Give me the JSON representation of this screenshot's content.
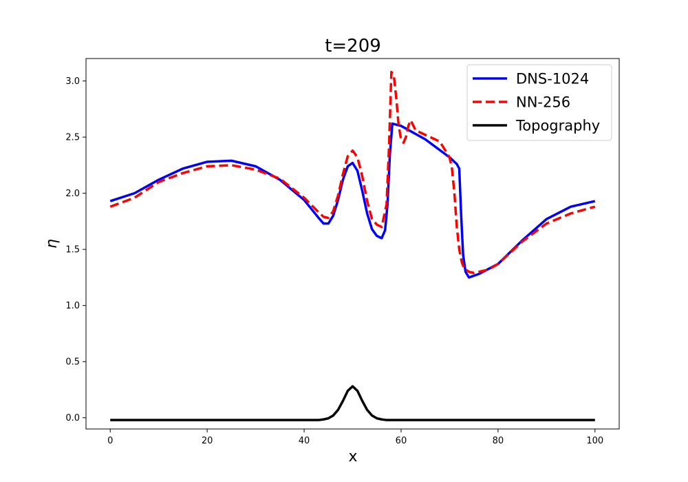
{
  "chart_data": {
    "type": "line",
    "title": "t=209",
    "xlabel": "x",
    "ylabel": "η",
    "xlim": [
      -5,
      105
    ],
    "ylim": [
      -0.1,
      3.2
    ],
    "xticks": [
      0,
      20,
      40,
      60,
      80,
      100
    ],
    "yticks": [
      0.0,
      0.5,
      1.0,
      1.5,
      2.0,
      2.5,
      3.0
    ],
    "xtick_labels": [
      "0",
      "20",
      "40",
      "60",
      "80",
      "100"
    ],
    "ytick_labels": [
      "0.0",
      "0.5",
      "1.0",
      "1.5",
      "2.0",
      "2.5",
      "3.0"
    ],
    "grid": false,
    "legend_position": "upper right",
    "series": [
      {
        "name": "DNS-1024",
        "color": "#0000ff",
        "style": "solid",
        "points": [
          [
            0,
            1.93
          ],
          [
            5,
            2.0
          ],
          [
            10,
            2.12
          ],
          [
            15,
            2.22
          ],
          [
            20,
            2.28
          ],
          [
            25,
            2.29
          ],
          [
            30,
            2.24
          ],
          [
            35,
            2.12
          ],
          [
            40,
            1.94
          ],
          [
            43,
            1.78
          ],
          [
            44,
            1.73
          ],
          [
            45,
            1.73
          ],
          [
            46,
            1.8
          ],
          [
            47,
            1.94
          ],
          [
            48,
            2.12
          ],
          [
            49,
            2.24
          ],
          [
            50,
            2.27
          ],
          [
            51,
            2.2
          ],
          [
            52,
            2.02
          ],
          [
            53,
            1.82
          ],
          [
            54,
            1.68
          ],
          [
            55,
            1.62
          ],
          [
            56,
            1.6
          ],
          [
            56.7,
            1.67
          ],
          [
            57.2,
            1.9
          ],
          [
            57.7,
            2.35
          ],
          [
            58.2,
            2.62
          ],
          [
            60,
            2.6
          ],
          [
            65,
            2.48
          ],
          [
            70,
            2.32
          ],
          [
            71.5,
            2.26
          ],
          [
            72,
            2.22
          ],
          [
            72.4,
            1.8
          ],
          [
            72.8,
            1.45
          ],
          [
            73.3,
            1.3
          ],
          [
            74,
            1.25
          ],
          [
            76,
            1.28
          ],
          [
            80,
            1.37
          ],
          [
            85,
            1.58
          ],
          [
            90,
            1.77
          ],
          [
            95,
            1.88
          ],
          [
            100,
            1.93
          ]
        ]
      },
      {
        "name": "NN-256",
        "color": "#ff0000",
        "style": "dashed",
        "points": [
          [
            0,
            1.88
          ],
          [
            5,
            1.96
          ],
          [
            10,
            2.1
          ],
          [
            15,
            2.18
          ],
          [
            20,
            2.24
          ],
          [
            25,
            2.25
          ],
          [
            30,
            2.21
          ],
          [
            35,
            2.13
          ],
          [
            40,
            1.96
          ],
          [
            43,
            1.83
          ],
          [
            44,
            1.79
          ],
          [
            45,
            1.78
          ],
          [
            46,
            1.84
          ],
          [
            47,
            1.98
          ],
          [
            48,
            2.17
          ],
          [
            49,
            2.33
          ],
          [
            50,
            2.38
          ],
          [
            51,
            2.32
          ],
          [
            52,
            2.15
          ],
          [
            53,
            1.93
          ],
          [
            54,
            1.77
          ],
          [
            55,
            1.72
          ],
          [
            56,
            1.7
          ],
          [
            57,
            1.9
          ],
          [
            57.5,
            2.4
          ],
          [
            58,
            3.08
          ],
          [
            58.5,
            3.05
          ],
          [
            59,
            2.85
          ],
          [
            59.5,
            2.6
          ],
          [
            60,
            2.48
          ],
          [
            60.5,
            2.45
          ],
          [
            61,
            2.5
          ],
          [
            61.5,
            2.6
          ],
          [
            62,
            2.65
          ],
          [
            63,
            2.56
          ],
          [
            65,
            2.52
          ],
          [
            68,
            2.46
          ],
          [
            70,
            2.32
          ],
          [
            70.5,
            2.22
          ],
          [
            71,
            2.0
          ],
          [
            71.5,
            1.7
          ],
          [
            72,
            1.5
          ],
          [
            72.5,
            1.39
          ],
          [
            73,
            1.33
          ],
          [
            74,
            1.3
          ],
          [
            75,
            1.29
          ],
          [
            78,
            1.32
          ],
          [
            80,
            1.37
          ],
          [
            85,
            1.57
          ],
          [
            90,
            1.73
          ],
          [
            95,
            1.82
          ],
          [
            100,
            1.88
          ]
        ]
      },
      {
        "name": "Topography",
        "color": "#000000",
        "style": "solid",
        "points": [
          [
            0,
            -0.02
          ],
          [
            43,
            -0.02
          ],
          [
            44,
            -0.015
          ],
          [
            45,
            -0.005
          ],
          [
            46,
            0.02
          ],
          [
            47,
            0.07
          ],
          [
            48,
            0.15
          ],
          [
            49,
            0.24
          ],
          [
            50,
            0.28
          ],
          [
            51,
            0.24
          ],
          [
            52,
            0.15
          ],
          [
            53,
            0.07
          ],
          [
            54,
            0.02
          ],
          [
            55,
            -0.005
          ],
          [
            56,
            -0.015
          ],
          [
            57,
            -0.02
          ],
          [
            100,
            -0.02
          ]
        ]
      }
    ]
  }
}
